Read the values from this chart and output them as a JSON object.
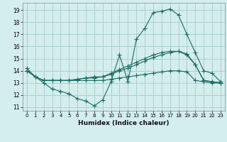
{
  "xlabel": "Humidex (Indice chaleur)",
  "bg_color": "#d4eeed",
  "grid_color": "#aad0cc",
  "line_color": "#1a6b60",
  "xlim": [
    -0.5,
    23.5
  ],
  "ylim": [
    10.7,
    19.6
  ],
  "xticks": [
    0,
    1,
    2,
    3,
    4,
    5,
    6,
    7,
    8,
    9,
    10,
    11,
    12,
    13,
    14,
    15,
    16,
    17,
    18,
    19,
    20,
    21,
    22,
    23
  ],
  "yticks": [
    11,
    12,
    13,
    14,
    15,
    16,
    17,
    18,
    19
  ],
  "line1_x": [
    0,
    1,
    2,
    3,
    4,
    5,
    6,
    7,
    8,
    9,
    10,
    11,
    12,
    13,
    14,
    15,
    16,
    17,
    18,
    19,
    20,
    21,
    22,
    23
  ],
  "line1_y": [
    14.2,
    13.5,
    13.0,
    12.5,
    12.3,
    12.1,
    11.7,
    11.5,
    11.1,
    11.6,
    13.1,
    15.3,
    13.1,
    16.6,
    17.5,
    18.8,
    18.9,
    19.1,
    18.6,
    17.0,
    15.5,
    14.0,
    13.8,
    13.1
  ],
  "line2_x": [
    0,
    1,
    2,
    3,
    4,
    5,
    6,
    7,
    8,
    9,
    10,
    11,
    12,
    13,
    14,
    15,
    16,
    17,
    18,
    19,
    20,
    21,
    22,
    23
  ],
  "line2_y": [
    14.0,
    13.5,
    13.2,
    13.2,
    13.2,
    13.2,
    13.2,
    13.2,
    13.2,
    13.2,
    13.3,
    13.4,
    13.5,
    13.6,
    13.7,
    13.8,
    13.9,
    14.0,
    14.0,
    13.9,
    13.2,
    13.1,
    13.0,
    13.0
  ],
  "line3_x": [
    0,
    1,
    2,
    3,
    4,
    5,
    6,
    7,
    8,
    9,
    10,
    11,
    12,
    13,
    14,
    15,
    16,
    17,
    18,
    19,
    20,
    21,
    22,
    23
  ],
  "line3_y": [
    14.0,
    13.5,
    13.2,
    13.2,
    13.2,
    13.2,
    13.3,
    13.4,
    13.4,
    13.5,
    13.7,
    14.0,
    14.2,
    14.5,
    14.8,
    15.1,
    15.3,
    15.5,
    15.6,
    15.3,
    14.5,
    13.2,
    13.1,
    13.0
  ],
  "line4_x": [
    0,
    1,
    2,
    3,
    4,
    5,
    6,
    7,
    8,
    9,
    10,
    11,
    12,
    13,
    14,
    15,
    16,
    17,
    18,
    19,
    20,
    21,
    22,
    23
  ],
  "line4_y": [
    14.0,
    13.5,
    13.2,
    13.2,
    13.2,
    13.2,
    13.3,
    13.4,
    13.5,
    13.5,
    13.8,
    14.1,
    14.4,
    14.7,
    15.0,
    15.3,
    15.5,
    15.6,
    15.6,
    15.4,
    14.5,
    13.2,
    13.1,
    13.0
  ]
}
